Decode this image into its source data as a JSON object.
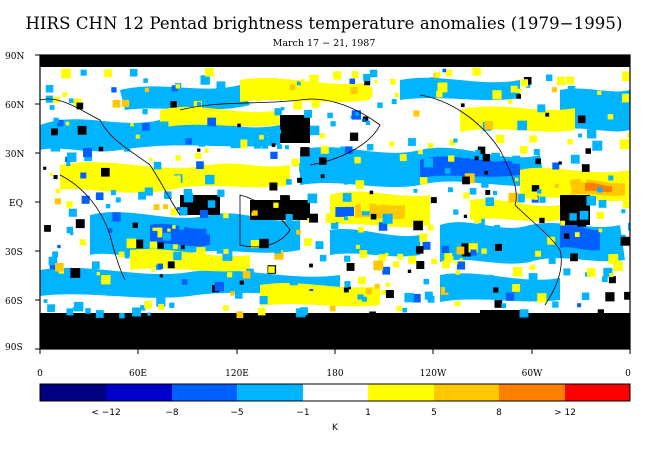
{
  "title": "HIRS CHN 12 Pentad brightness temperature anomalies (1979−1995)",
  "subtitle": "March 17 − 21, 1987",
  "map_axes": {
    "lat_labels": [
      "90N",
      "60N",
      "30N",
      "EQ",
      "30S",
      "60S",
      "90S"
    ],
    "lon_labels": [
      "0",
      "60E",
      "120E",
      "180",
      "120W",
      "60W",
      "0"
    ]
  },
  "colorbar": {
    "unit": "K",
    "colors": [
      "#000080",
      "#0000c8",
      "#0060ff",
      "#00b4ff",
      "#ffffff",
      "#ffff00",
      "#ffc800",
      "#ff8000",
      "#ff0000"
    ],
    "labels": [
      "< −12",
      "−8",
      "−5",
      "−1",
      "1",
      "5",
      "8",
      "> 12"
    ]
  },
  "map_colors": {
    "missing": "#000000",
    "land": "#000000",
    "field": [
      "#00b4ff",
      "#ffff00",
      "#0060ff",
      "#ffc800",
      "#ff8000"
    ]
  }
}
